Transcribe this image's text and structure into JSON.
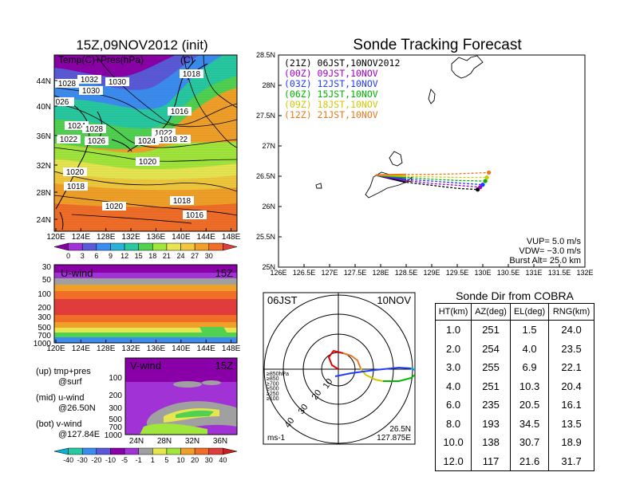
{
  "left_panel": {
    "title": "15Z,09NOV2012 (init)",
    "label": "Temp(C)+Pres(hPa)",
    "unit": "(C)",
    "lat_ticks": [
      "44N",
      "40N",
      "36N",
      "32N",
      "28N",
      "24N"
    ],
    "lon_ticks": [
      "120E",
      "124E",
      "128E",
      "132E",
      "136E",
      "140E",
      "144E",
      "148E"
    ],
    "colorbar": [
      "0",
      "3",
      "6",
      "9",
      "12",
      "15",
      "18",
      "21",
      "24",
      "27",
      "30"
    ],
    "colorbar_colors": [
      "#8a00a8",
      "#a032d6",
      "#5a5ad8",
      "#3c8cf0",
      "#28b4d8",
      "#28c8a0",
      "#50d250",
      "#a0e63c",
      "#e6e650",
      "#f0c83c",
      "#f0a028",
      "#f06e28",
      "#e03c3c"
    ],
    "isobars": [
      {
        "text": "1028"
      },
      {
        "text": "1032"
      },
      {
        "text": "1030"
      },
      {
        "text": "1030"
      },
      {
        "text": "026"
      },
      {
        "text": "1022"
      },
      {
        "text": "1018"
      },
      {
        "text": "1016"
      },
      {
        "text": "1024"
      },
      {
        "text": "1022"
      },
      {
        "text": "1028"
      },
      {
        "text": "1026"
      },
      {
        "text": "1024"
      },
      {
        "text": "1022"
      },
      {
        "text": "1018"
      },
      {
        "text": "1020"
      },
      {
        "text": "1020"
      },
      {
        "text": "1018"
      },
      {
        "text": "1020"
      },
      {
        "text": "1018"
      },
      {
        "text": "1016"
      }
    ]
  },
  "uwind_panel": {
    "label": "U-wind",
    "time": "15Z",
    "y_ticks": [
      "30",
      "50",
      "100",
      "200",
      "300",
      "500",
      "700",
      "1000"
    ],
    "x_ticks": [
      "120E",
      "124E",
      "128E",
      "132E",
      "136E",
      "140E",
      "144E",
      "148E"
    ]
  },
  "vwind_panel": {
    "label": "V-wind",
    "time": "15Z",
    "y_ticks": [
      "100",
      "200",
      "300",
      "500",
      "700",
      "1000"
    ],
    "x_ticks": [
      "24N",
      "28N",
      "32N",
      "36N"
    ],
    "colorbar": [
      "-40",
      "-30",
      "-20",
      "-10",
      "-5",
      "-1",
      "1",
      "5",
      "10",
      "20",
      "30",
      "40"
    ]
  },
  "legend_notes": {
    "line1": "(up) tmp+pres",
    "line2": "@surf",
    "line3": "(mid) u-wind",
    "line4": "@26.50N",
    "line5": "(bot) v-wind",
    "line6": "@127.84E"
  },
  "track_panel": {
    "title": "Sonde Tracking Forecast",
    "legend": [
      {
        "text": "(21Z)  06JST,10NOV2012",
        "color": "#000000"
      },
      {
        "text": "(00Z)  09JST,10NOV",
        "color": "#a000c8"
      },
      {
        "text": "(03Z)  12JST,10NOV",
        "color": "#1e3cff"
      },
      {
        "text": "(06Z)  15JST,10NOV",
        "color": "#00b400"
      },
      {
        "text": "(09Z)  18JST,10NOV",
        "color": "#d2c800"
      },
      {
        "text": "(12Z)  21JST,10NOV",
        "color": "#e6781e"
      }
    ],
    "y_ticks": [
      "28.5N",
      "28N",
      "27.5N",
      "27N",
      "26.5N",
      "26N",
      "25.5N",
      "25N"
    ],
    "x_ticks": [
      "126E",
      "126.5E",
      "127E",
      "127.5E",
      "128E",
      "128.5E",
      "129E",
      "129.5E",
      "130E",
      "130.5E",
      "131E",
      "131.5E",
      "132E"
    ],
    "vup": "VUP=  5.0  m/s",
    "vdw": "VDW= −3.0  m/s",
    "burst": "Burst Alt=  25.0  km"
  },
  "chart_data": [
    {
      "type": "line",
      "title": "Sonde Tracking Forecast",
      "xlim": [
        126,
        132
      ],
      "ylim": [
        25,
        28.5
      ],
      "series": [
        {
          "name": "(21Z) 06JST,10NOV2012",
          "color": "#000000",
          "x": [
            127.9,
            128.5,
            129.0,
            129.5,
            129.9
          ],
          "y": [
            26.52,
            26.4,
            26.35,
            26.3,
            26.28
          ]
        },
        {
          "name": "(00Z) 09JST,10NOV",
          "color": "#a000c8",
          "x": [
            127.9,
            128.5,
            129.0,
            129.5,
            129.95
          ],
          "y": [
            26.52,
            26.43,
            26.38,
            26.35,
            26.32
          ]
        },
        {
          "name": "(03Z) 12JST,10NOV",
          "color": "#1e3cff",
          "x": [
            127.9,
            128.5,
            129.0,
            129.5,
            130.0
          ],
          "y": [
            26.52,
            26.45,
            26.42,
            26.39,
            26.36
          ]
        },
        {
          "name": "(06Z) 15JST,10NOV",
          "color": "#00b400",
          "x": [
            127.9,
            128.5,
            129.0,
            129.5,
            130.05
          ],
          "y": [
            26.52,
            26.48,
            26.45,
            26.43,
            26.42
          ]
        },
        {
          "name": "(09Z) 18JST,10NOV",
          "color": "#d2c800",
          "x": [
            127.9,
            128.5,
            129.0,
            129.5,
            130.08
          ],
          "y": [
            26.52,
            26.5,
            26.49,
            26.48,
            26.48
          ]
        },
        {
          "name": "(12Z) 21JST,10NOV",
          "color": "#e6781e",
          "x": [
            127.9,
            128.5,
            129.0,
            129.5,
            130.12
          ],
          "y": [
            26.52,
            26.53,
            26.53,
            26.54,
            26.56
          ]
        }
      ]
    },
    {
      "type": "table",
      "title": "Sonde Dir from COBRA",
      "columns": [
        "HT(km)",
        "AZ(deg)",
        "EL(deg)",
        "RNG(km)"
      ],
      "rows": [
        [
          "1.0",
          "251",
          "1.5",
          "24.0"
        ],
        [
          "2.0",
          "254",
          "4.0",
          "23.5"
        ],
        [
          "3.0",
          "255",
          "6.9",
          "22.1"
        ],
        [
          "4.0",
          "251",
          "10.3",
          "20.4"
        ],
        [
          "6.0",
          "235",
          "20.5",
          "16.1"
        ],
        [
          "8.0",
          "193",
          "34.5",
          "13.5"
        ],
        [
          "10.0",
          "138",
          "30.7",
          "18.9"
        ],
        [
          "12.0",
          "117",
          "21.6",
          "31.7"
        ]
      ]
    }
  ],
  "hodograph": {
    "time": "06JST",
    "date": "10NOV",
    "ring_labels": [
      "10",
      "20",
      "30",
      "40"
    ],
    "levels": [
      {
        "text": "≥850hPa",
        "color": "#e00000"
      },
      {
        "text": "≥850",
        "color": "#e6781e"
      },
      {
        "text": "≥700",
        "color": "#d2c800"
      },
      {
        "text": "≥500",
        "color": "#00b400"
      },
      {
        "text": "≥250",
        "color": "#00b4d2"
      },
      {
        "text": "≥100",
        "color": "#1e3cff"
      }
    ],
    "unit": "ms-1",
    "lat": "26.5N",
    "lon": "127.875E"
  }
}
